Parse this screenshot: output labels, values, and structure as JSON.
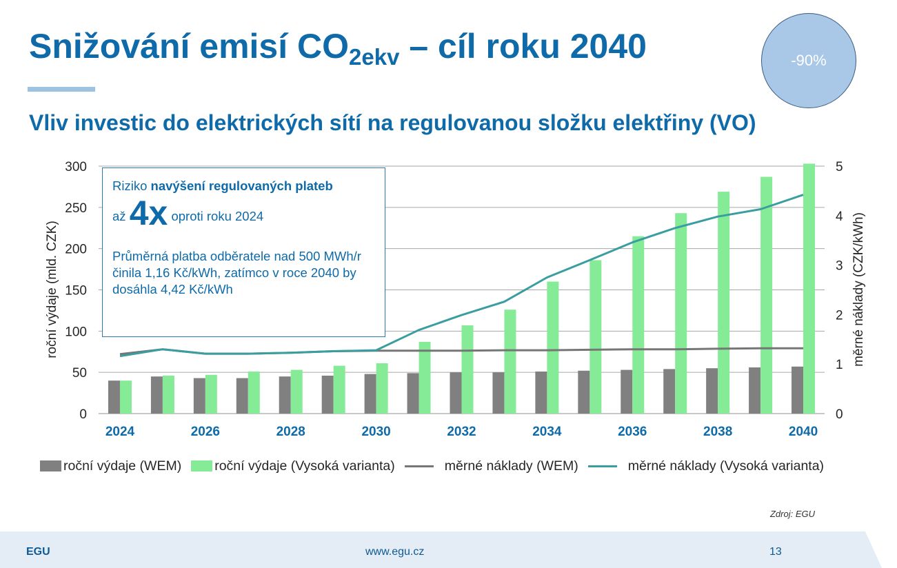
{
  "slide": {
    "title_main": "Snižování emisí CO",
    "title_sub": "2ekv",
    "title_tail": " – cíl roku 2040",
    "badge": "-90%",
    "subtitle": "Vliv investic do elektrických sítí na regulovanou složku elektřiny (VO)"
  },
  "callout": {
    "line1_pre": "Riziko ",
    "line1_bold": "navýšení regulovaných plateb",
    "line2_pre": "až ",
    "line2_big": "4x",
    "line2_post": " oproti roku 2024",
    "line3": "Průměrná platba odběratele nad 500 MWh/r činila 1,16 Kč/kWh, zatímco v roce 2040 by dosáhla 4,42 Kč/kWh"
  },
  "chart_data": {
    "type": "bar",
    "x": [
      2024,
      2025,
      2026,
      2027,
      2028,
      2029,
      2030,
      2031,
      2032,
      2033,
      2034,
      2035,
      2036,
      2037,
      2038,
      2039,
      2040
    ],
    "x_tick_labels": [
      "2024",
      "2026",
      "2028",
      "2030",
      "2032",
      "2034",
      "2036",
      "2038",
      "2040"
    ],
    "ylabel": "roční výdaje (mld. CZK)",
    "ylim": [
      0,
      300
    ],
    "yticks": [
      0,
      50,
      100,
      150,
      200,
      250,
      300
    ],
    "y2label": "měrné náklady (CZK/kWh)",
    "y2lim": [
      0,
      5
    ],
    "y2ticks": [
      0,
      1,
      2,
      3,
      4,
      5
    ],
    "grid": "horizontal",
    "legend_position": "bottom",
    "series": [
      {
        "name": "roční výdaje  (WEM)",
        "type": "bar",
        "axis": "left",
        "color": "#808080",
        "values": [
          40,
          45,
          43,
          43,
          45,
          46,
          48,
          49,
          50,
          50,
          51,
          52,
          53,
          54,
          55,
          56,
          57
        ]
      },
      {
        "name": "roční výdaje  (Vysoká varianta)",
        "type": "bar",
        "axis": "left",
        "color": "#85eb97",
        "values": [
          40,
          46,
          47,
          51,
          53,
          58,
          61,
          87,
          107,
          126,
          160,
          186,
          215,
          243,
          269,
          287,
          303
        ]
      },
      {
        "name": "měrné náklady (WEM)",
        "type": "line",
        "axis": "right",
        "color": "#767676",
        "values": [
          1.2,
          1.3,
          1.21,
          1.21,
          1.23,
          1.26,
          1.27,
          1.27,
          1.27,
          1.28,
          1.28,
          1.29,
          1.3,
          1.3,
          1.31,
          1.32,
          1.32
        ]
      },
      {
        "name": "měrné náklady (Vysoká varianta)",
        "type": "line",
        "axis": "right",
        "color": "#3a9da0",
        "values": [
          1.16,
          1.3,
          1.21,
          1.21,
          1.23,
          1.26,
          1.28,
          1.69,
          1.99,
          2.26,
          2.75,
          3.1,
          3.46,
          3.75,
          3.98,
          4.13,
          4.42
        ]
      }
    ]
  },
  "source": "Zdroj: EGU",
  "footer": {
    "brand": "EGU",
    "url": "www.egu.cz",
    "page": "13"
  },
  "colors": {
    "primary": "#0e6aa8",
    "footer_bg": "#e4edf6",
    "badge_bg": "#a9c7e6"
  }
}
